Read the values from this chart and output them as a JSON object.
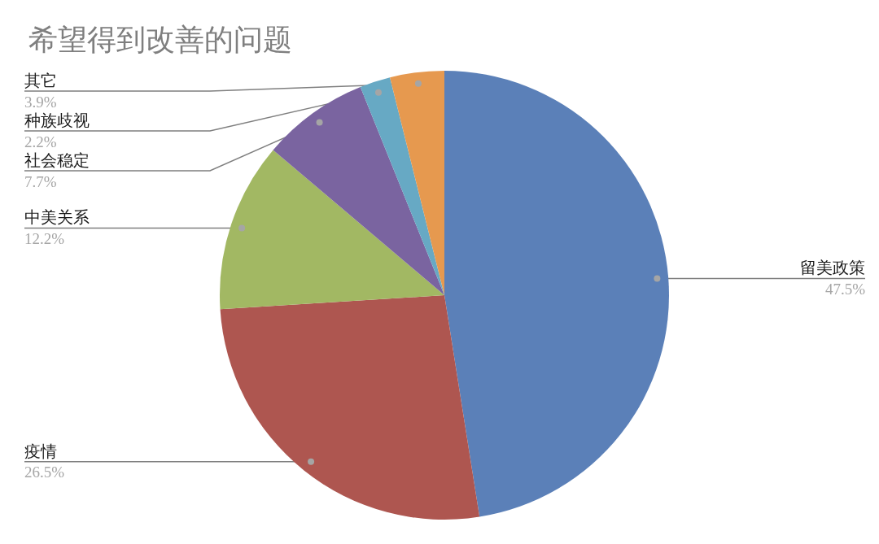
{
  "chart_data": {
    "type": "pie",
    "title": "希望得到改善的问题",
    "categories": [
      "留美政策",
      "疫情",
      "中美关系",
      "社会稳定",
      "种族歧视",
      "其它"
    ],
    "values": [
      47.5,
      26.5,
      12.2,
      7.7,
      2.2,
      3.9
    ],
    "colors": [
      "#5b80b8",
      "#ae5650",
      "#a2b863",
      "#7a64a0",
      "#67a9c4",
      "#e6994f"
    ],
    "value_labels": [
      "47.5%",
      "26.5%",
      "12.2%",
      "7.7%",
      "2.2%",
      "3.9%"
    ]
  }
}
